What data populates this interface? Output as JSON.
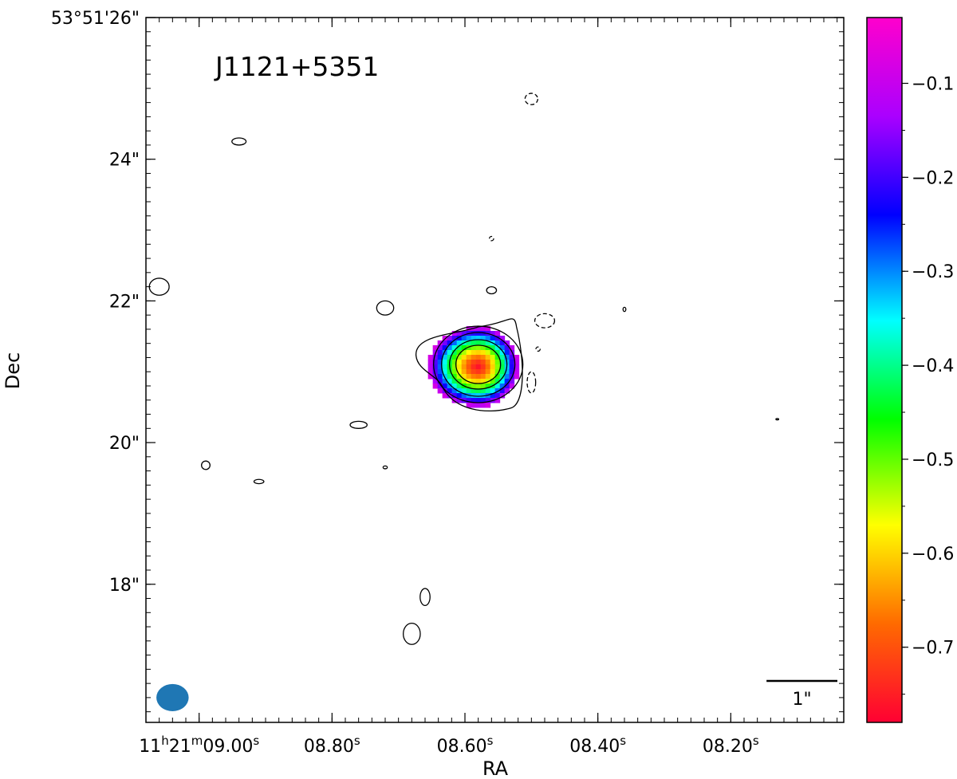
{
  "chart_data": {
    "type": "heatmap",
    "source_label": "J1121+5351",
    "xlabel": "RA",
    "ylabel": "Dec",
    "x_tick_labels": [
      {
        "main": "11",
        "sup1": "h",
        "main2": "21",
        "sup2": "m",
        "main3": "09.00",
        "sup3": "s"
      },
      {
        "main": "08.80",
        "sup1": "s"
      },
      {
        "main": "08.60",
        "sup1": "s"
      },
      {
        "main": "08.40",
        "sup1": "s"
      },
      {
        "main": "08.20",
        "sup1": "s"
      }
    ],
    "x_ticks_seconds": [
      9.0,
      8.8,
      8.6,
      8.4,
      8.2
    ],
    "xlim_seconds": [
      9.08,
      8.03
    ],
    "y_tick_labels": [
      "53°51'26\"",
      "24\"",
      "22\"",
      "20\"",
      "18\""
    ],
    "y_ticks_arcsec": [
      26,
      24,
      22,
      20,
      18
    ],
    "ylim_arcsec": [
      16.05,
      26.0
    ],
    "colorbar": {
      "tick_labels": [
        "−0.1",
        "−0.2",
        "−0.3",
        "−0.4",
        "−0.5",
        "−0.6",
        "−0.7"
      ],
      "ticks": [
        -0.1,
        -0.2,
        -0.3,
        -0.4,
        -0.5,
        -0.6,
        -0.7
      ],
      "vmin": -0.78,
      "vmax": -0.03,
      "colormap": [
        "#ff0033",
        "#ff6a00",
        "#ffff00",
        "#00ff00",
        "#00ffff",
        "#0000ff",
        "#aa00ff",
        "#ff00cc"
      ]
    },
    "core": {
      "ra_s": 8.58,
      "dec_as": 21.07,
      "value_center": -0.76,
      "value_edge": -0.08
    },
    "contours_solid": [
      {
        "ra_s": 9.06,
        "dec_as": 22.2,
        "a_as": 0.14,
        "b_as": 0.12
      },
      {
        "ra_s": 8.94,
        "dec_as": 24.25,
        "a_as": 0.1,
        "b_as": 0.05
      },
      {
        "ra_s": 8.72,
        "dec_as": 21.9,
        "a_as": 0.12,
        "b_as": 0.1
      },
      {
        "ra_s": 8.56,
        "dec_as": 22.15,
        "a_as": 0.07,
        "b_as": 0.05
      },
      {
        "ra_s": 8.76,
        "dec_as": 20.25,
        "a_as": 0.12,
        "b_as": 0.05
      },
      {
        "ra_s": 8.99,
        "dec_as": 19.68,
        "a_as": 0.06,
        "b_as": 0.06
      },
      {
        "ra_s": 8.91,
        "dec_as": 19.45,
        "a_as": 0.07,
        "b_as": 0.03
      },
      {
        "ra_s": 8.72,
        "dec_as": 19.65,
        "a_as": 0.03,
        "b_as": 0.02
      },
      {
        "ra_s": 8.66,
        "dec_as": 17.82,
        "a_as": 0.07,
        "b_as": 0.12
      },
      {
        "ra_s": 8.68,
        "dec_as": 17.3,
        "a_as": 0.12,
        "b_as": 0.15
      },
      {
        "ra_s": 8.36,
        "dec_as": 21.88,
        "a_as": 0.02,
        "b_as": 0.03
      },
      {
        "ra_s": 8.13,
        "dec_as": 20.33,
        "a_as": 0.02,
        "b_as": 0.01
      }
    ],
    "contours_dashed": [
      {
        "ra_s": 8.48,
        "dec_as": 21.72,
        "a_as": 0.14,
        "b_as": 0.1
      },
      {
        "ra_s": 8.5,
        "dec_as": 20.85,
        "a_as": 0.06,
        "b_as": 0.15
      },
      {
        "ra_s": 8.5,
        "dec_as": 24.85,
        "a_as": 0.09,
        "b_as": 0.08
      },
      {
        "ra_s": 8.56,
        "dec_as": 22.88,
        "a_as": 0.03,
        "b_as": 0.03
      },
      {
        "ra_s": 8.49,
        "dec_as": 21.32,
        "a_as": 0.03,
        "b_as": 0.03
      }
    ],
    "beam": {
      "ra_s": 9.04,
      "dec_as": 16.4,
      "a_as": 0.12,
      "b_as": 0.24,
      "color": "#1f77b4"
    },
    "scale_bar": {
      "label": "1\"",
      "length_as": 1
    }
  }
}
